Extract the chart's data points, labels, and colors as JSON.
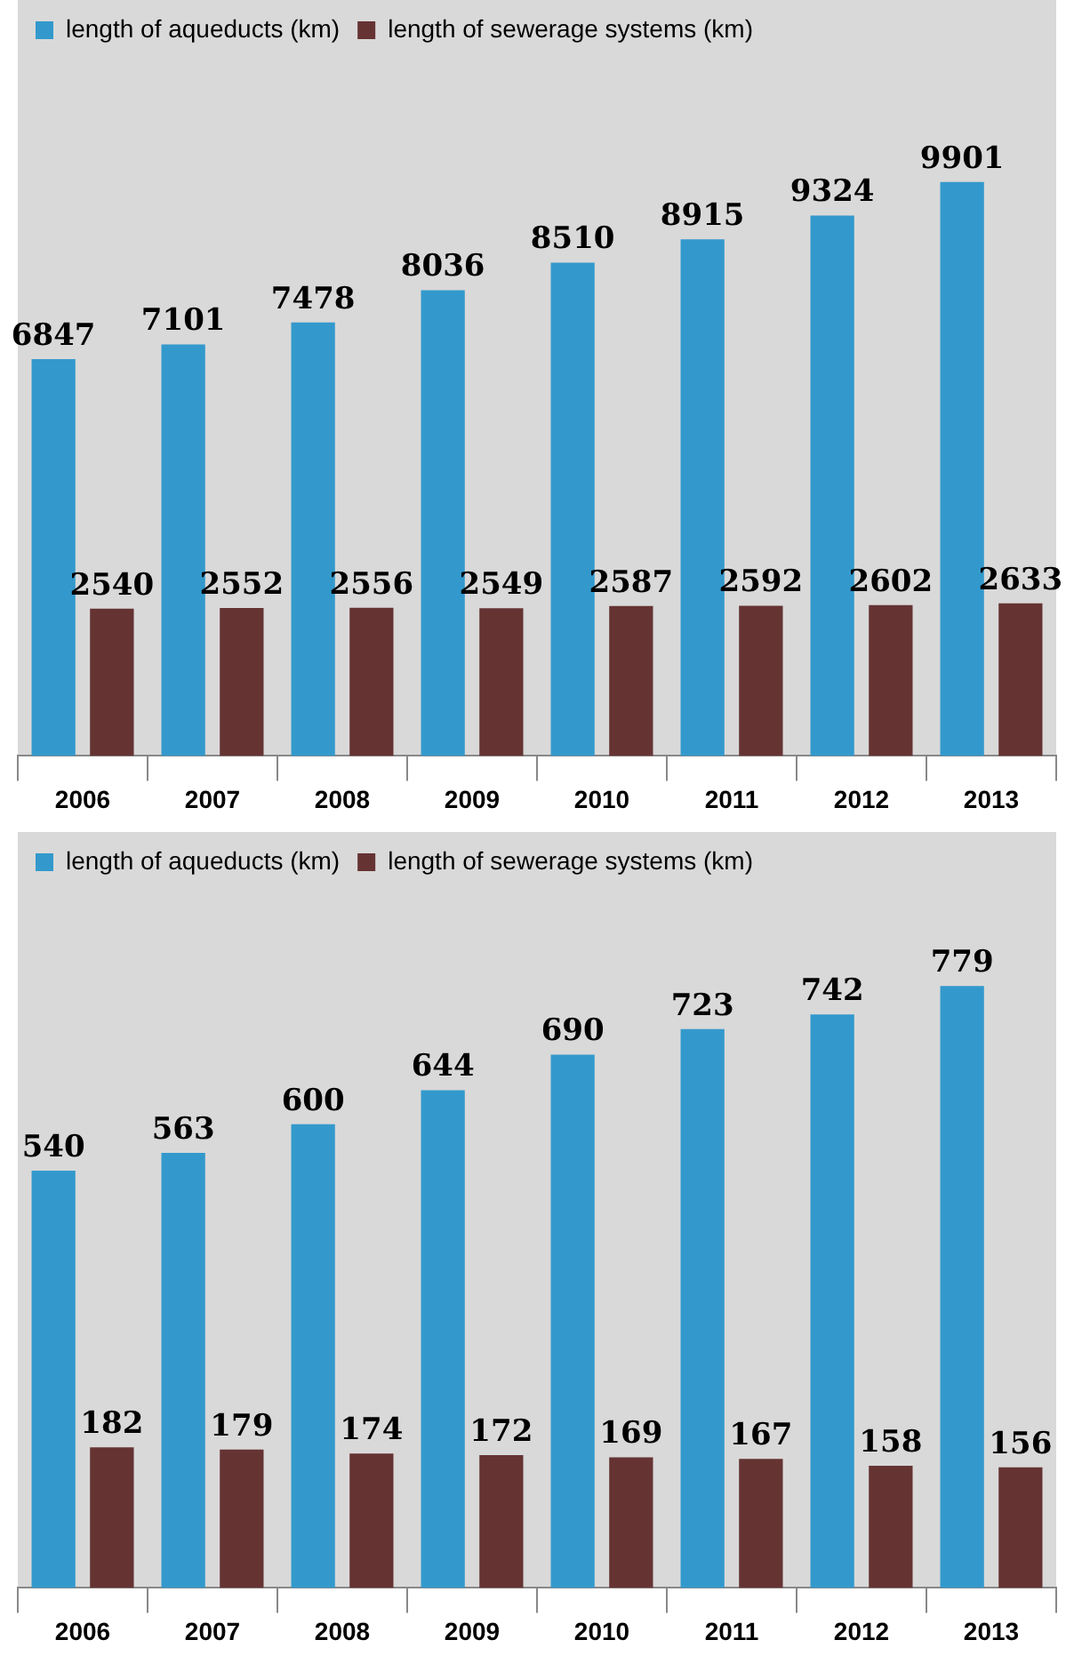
{
  "chart_data": [
    {
      "type": "bar",
      "categories": [
        "2006",
        "2007",
        "2008",
        "2009",
        "2010",
        "2011",
        "2012",
        "2013"
      ],
      "series": [
        {
          "name": "length of aqueducts (km)",
          "color": "#3399cc",
          "values": [
            6847,
            7101,
            7478,
            8036,
            8510,
            8915,
            9324,
            9901
          ]
        },
        {
          "name": "length of sewerage systems (km)",
          "color": "#663333",
          "values": [
            2540,
            2552,
            2556,
            2549,
            2587,
            2592,
            2602,
            2633
          ]
        }
      ],
      "data_labels": true,
      "legend": "top left",
      "tick_labels": "x"
    },
    {
      "type": "bar",
      "categories": [
        "2006",
        "2007",
        "2008",
        "2009",
        "2010",
        "2011",
        "2012",
        "2013"
      ],
      "series": [
        {
          "name": "length of aqueducts (km)",
          "color": "#3399cc",
          "values": [
            540,
            563,
            600,
            644,
            690,
            723,
            742,
            779
          ]
        },
        {
          "name": "length of sewerage systems (km)",
          "color": "#663333",
          "values": [
            182,
            179,
            174,
            172,
            169,
            167,
            158,
            156
          ]
        }
      ],
      "data_labels": true,
      "legend": "top left",
      "tick_labels": "x"
    }
  ]
}
